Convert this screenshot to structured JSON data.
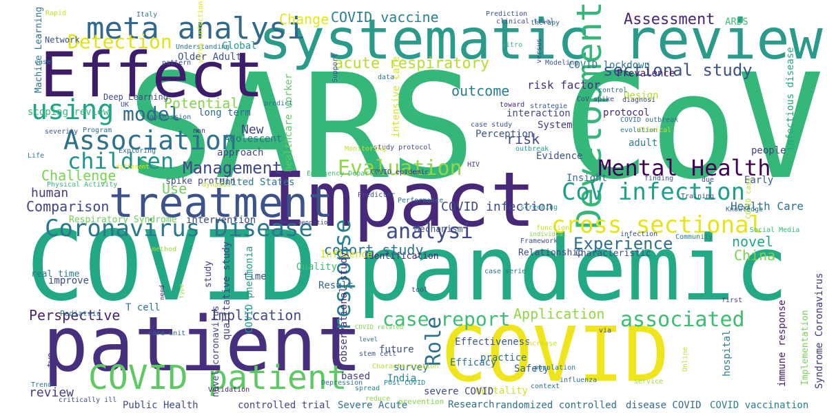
{
  "words": [
    {
      "text": "SARS CoV",
      "color": "#35b779"
    },
    {
      "text": "COVID",
      "color": "#22a884"
    },
    {
      "text": "pandemic",
      "color": "#23a983"
    },
    {
      "text": "COVID",
      "color": "#f0e51c"
    },
    {
      "text": "patient",
      "color": "#46307e"
    },
    {
      "text": "Impact",
      "color": "#482878"
    },
    {
      "text": "systematic review",
      "color": "#2a9a8a"
    },
    {
      "text": "Effect",
      "color": "#3d1d6a"
    },
    {
      "text": "treatment",
      "color": "#3b528b"
    },
    {
      "text": "COVID patient",
      "color": "#5ec962"
    },
    {
      "text": "meta analysi",
      "color": "#31688e"
    },
    {
      "text": "Coronavirus Disease",
      "color": "#2a788e"
    },
    {
      "text": "using",
      "color": "#20a386"
    },
    {
      "text": "Association",
      "color": "#2c728e"
    },
    {
      "text": "children",
      "color": "#21918c"
    },
    {
      "text": "Development",
      "color": "#35b779"
    },
    {
      "text": "Mental Health",
      "color": "#440154"
    },
    {
      "text": "cross sectional",
      "color": "#e5e419"
    },
    {
      "text": "CoV infection",
      "color": "#1f9e89"
    },
    {
      "text": "Evaluation",
      "color": "#8fd744"
    },
    {
      "text": "Detection",
      "color": "#dfe318"
    },
    {
      "text": "Management",
      "color": "#3e4989"
    },
    {
      "text": "model",
      "color": "#31688e"
    },
    {
      "text": "analysi",
      "color": "#3e4a89"
    },
    {
      "text": "Experience",
      "color": "#2d708e"
    },
    {
      "text": "response",
      "color": "#26828e"
    },
    {
      "text": "associated",
      "color": "#3fbc73"
    },
    {
      "text": "case report",
      "color": "#3fbc73"
    },
    {
      "text": "Role",
      "color": "#2c728e"
    },
    {
      "text": "sectional study",
      "color": "#3b528b"
    },
    {
      "text": "acute respiratory",
      "color": "#b5de2b"
    },
    {
      "text": "COVID vaccine",
      "color": "#26828e"
    },
    {
      "text": "Assessment",
      "color": "#482475"
    },
    {
      "text": "Potential",
      "color": "#86d549"
    },
    {
      "text": "Use",
      "color": "#6ece58"
    },
    {
      "text": "Challenge",
      "color": "#7ad151"
    },
    {
      "text": "Comparison",
      "color": "#414487"
    },
    {
      "text": "outcome",
      "color": "#287d8e"
    },
    {
      "text": "risk",
      "color": "#3e4989"
    },
    {
      "text": "cohort study",
      "color": "#2c728e"
    },
    {
      "text": "Application",
      "color": "#8fd744"
    },
    {
      "text": "Implication",
      "color": "#3f4788"
    },
    {
      "text": "Perspective",
      "color": "#481f70"
    },
    {
      "text": "review",
      "color": "#433e85"
    },
    {
      "text": "New",
      "color": "#404688"
    },
    {
      "text": "human",
      "color": "#443983"
    },
    {
      "text": "COVID infection",
      "color": "#3f4788"
    },
    {
      "text": "China",
      "color": "#7ad151"
    },
    {
      "text": "novel",
      "color": "#21a585"
    },
    {
      "text": "Change",
      "color": "#e7e419"
    },
    {
      "text": "Health Care",
      "color": "#2e6e8e"
    },
    {
      "text": "risk factor",
      "color": "#472d7b"
    },
    {
      "text": "Prevalence",
      "color": "#481a6c"
    },
    {
      "text": "Older Adult",
      "color": "#3b528b"
    },
    {
      "text": "healthcare worker",
      "color": "#5ec962"
    },
    {
      "text": "COVID lockdown",
      "color": "#2a788e"
    },
    {
      "text": "Global",
      "color": "#1f9a8a"
    },
    {
      "text": "intensive care",
      "color": "#d8e219"
    },
    {
      "text": "Deep Learning",
      "color": "#3e4989"
    },
    {
      "text": "Machine Learning",
      "color": "#2c728e"
    },
    {
      "text": "scoping review",
      "color": "#35b779"
    },
    {
      "text": "protocol",
      "color": "#482878"
    },
    {
      "text": "long term",
      "color": "#2e6e8e"
    },
    {
      "text": "Adolescent",
      "color": "#2d708e"
    },
    {
      "text": "interaction",
      "color": "#404688"
    },
    {
      "text": "Perception",
      "color": "#3b528b"
    },
    {
      "text": "System",
      "color": "#453781"
    },
    {
      "text": "Design",
      "color": "#b5de2b"
    },
    {
      "text": "adult",
      "color": "#27808e"
    },
    {
      "text": "infectious disease",
      "color": "#22a884"
    },
    {
      "text": "people",
      "color": "#424086"
    },
    {
      "text": "Early",
      "color": "#39568c"
    },
    {
      "text": "Insight",
      "color": "#2e6f8e"
    },
    {
      "text": "Evidence",
      "color": "#3b528b"
    },
    {
      "text": "United States",
      "color": "#2a788e"
    },
    {
      "text": "spike protein",
      "color": "#3e4989"
    },
    {
      "text": "approach",
      "color": "#414487"
    },
    {
      "text": "intervention",
      "color": "#3f4788"
    },
    {
      "text": "Respiratory Syndrome",
      "color": "#6ece58"
    },
    {
      "text": "Mechanism",
      "color": "#3d4e8a"
    },
    {
      "text": "Identification",
      "color": "#482878"
    },
    {
      "text": "Relationship",
      "color": "#3e4a89"
    },
    {
      "text": "Characteristic",
      "color": "#3b528b"
    },
    {
      "text": "Quality",
      "color": "#3fbc73"
    },
    {
      "text": "Influence",
      "color": "#d2e21b"
    },
    {
      "text": "time",
      "color": "#3b528b"
    },
    {
      "text": "Result",
      "color": "#31688e"
    },
    {
      "text": "qualitative study",
      "color": "#404588"
    },
    {
      "text": "T cell",
      "color": "#2c728e"
    },
    {
      "text": "improve",
      "color": "#3e4989"
    },
    {
      "text": "real time",
      "color": "#2a788e"
    },
    {
      "text": "COVID pneumonia",
      "color": "#1f9e89"
    },
    {
      "text": "study",
      "color": "#443a83"
    },
    {
      "text": "observational study",
      "color": "#472d7b"
    },
    {
      "text": "Effectiveness",
      "color": "#39568c"
    },
    {
      "text": "Efficacy",
      "color": "#2c728e"
    },
    {
      "text": "Safety",
      "color": "#355f8d"
    },
    {
      "text": "practice",
      "color": "#2e6e8e"
    },
    {
      "text": "future",
      "color": "#3b528b"
    },
    {
      "text": "survey",
      "color": "#2d708e"
    },
    {
      "text": "based",
      "color": "#433e85"
    },
    {
      "text": "India",
      "color": "#26828e"
    },
    {
      "text": "mortality",
      "color": "#d2e21b"
    },
    {
      "text": "hospital",
      "color": "#287d8e"
    },
    {
      "text": "immune response",
      "color": "#481668"
    },
    {
      "text": "Implementation",
      "color": "#7ad151"
    },
    {
      "text": "Syndrome Coronavirus",
      "color": "#46337e"
    },
    {
      "text": "severe COVID",
      "color": "#3f4788"
    },
    {
      "text": "Research",
      "color": "#2d708e"
    },
    {
      "text": "randomized controlled",
      "color": "#2e6f8e"
    },
    {
      "text": "disease COVID",
      "color": "#31688e"
    },
    {
      "text": "COVID vaccination",
      "color": "#287d8e"
    },
    {
      "text": "controlled trial",
      "color": "#3f4788"
    },
    {
      "text": "Severe Acute",
      "color": "#2c728e"
    },
    {
      "text": "Public Health",
      "color": "#3e4989"
    },
    {
      "text": "novel coronavirus",
      "color": "#414487"
    },
    {
      "text": "two",
      "color": "#46327e"
    },
    {
      "text": "Validation",
      "color": "#482071"
    },
    {
      "text": "critically ill",
      "color": "#3e4a89"
    },
    {
      "text": "Trend",
      "color": "#2c728e"
    },
    {
      "text": "care unit",
      "color": "#31688e"
    },
    {
      "text": "Pediatric",
      "color": "#2a788e"
    },
    {
      "text": "need",
      "color": "#481f70"
    },
    {
      "text": "type",
      "color": "#a0da39"
    },
    {
      "text": "stem cell",
      "color": "#3b528b"
    },
    {
      "text": "COVID related",
      "color": "#7ad151"
    },
    {
      "text": "level",
      "color": "#2d708e"
    },
    {
      "text": "Characterization",
      "color": "#b5de2b"
    },
    {
      "text": "spread",
      "color": "#25858e"
    },
    {
      "text": "Post COVID",
      "color": "#23898e"
    },
    {
      "text": "Depression",
      "color": "#2a788e"
    },
    {
      "text": "reduce",
      "color": "#8fd744"
    },
    {
      "text": "prevention",
      "color": "#86d549"
    },
    {
      "text": "influenza",
      "color": "#31688e"
    },
    {
      "text": "context",
      "color": "#2d708e"
    },
    {
      "text": "population",
      "color": "#2a788e"
    },
    {
      "text": "increase",
      "color": "#d2e21b"
    },
    {
      "text": "Online",
      "color": "#c8e020"
    },
    {
      "text": "service",
      "color": "#a0da39"
    },
    {
      "text": "via",
      "color": "#3e4989"
    },
    {
      "text": "first",
      "color": "#404588"
    },
    {
      "text": "tool",
      "color": "#3b528b"
    },
    {
      "text": "case serie",
      "color": "#2a788e"
    },
    {
      "text": "method",
      "color": "#a0da39"
    },
    {
      "text": "Recommendation",
      "color": "#414487"
    },
    {
      "text": "Framework",
      "color": "#3b528b"
    },
    {
      "text": "individual",
      "color": "#8fd744"
    },
    {
      "text": "function",
      "color": "#c8e020"
    },
    {
      "text": "infection",
      "color": "#3e4989"
    },
    {
      "text": "Community",
      "color": "#2a788e"
    },
    {
      "text": "Social Media",
      "color": "#35b779"
    },
    {
      "text": "COVID case",
      "color": "#b5de2b"
    },
    {
      "text": "Knowledge",
      "color": "#2e6e8e"
    },
    {
      "text": "Training",
      "color": "#3b528b"
    },
    {
      "text": "screening",
      "color": "#1f9e89"
    },
    {
      "text": "due",
      "color": "#3e4989"
    },
    {
      "text": "finding",
      "color": "#3b528b"
    },
    {
      "text": "Performance",
      "color": "#2d708e"
    },
    {
      "text": "Predictor",
      "color": "#3e4989"
    },
    {
      "text": "COVID epidemic",
      "color": "#472d7b"
    },
    {
      "text": "Emergency Department",
      "color": "#3fbc73"
    },
    {
      "text": "HIV",
      "color": "#404588"
    },
    {
      "text": "dynamic",
      "color": "#b5de2b"
    },
    {
      "text": "different",
      "color": "#dfe318"
    },
    {
      "text": "Physical Activity",
      "color": "#35b779"
    },
    {
      "text": "Life",
      "color": "#2a788e"
    },
    {
      "text": "Exploring",
      "color": "#2d708e"
    },
    {
      "text": "severity",
      "color": "#3b528b"
    },
    {
      "text": "non",
      "color": "#472d7b"
    },
    {
      "text": "Program",
      "color": "#2e6e8e"
    },
    {
      "text": "study protocol",
      "color": "#3e4989"
    },
    {
      "text": "Monitoring",
      "color": "#c8e020"
    },
    {
      "text": "outbreak",
      "color": "#1f9e89"
    },
    {
      "text": "evolution",
      "color": "#2a788e"
    },
    {
      "text": "Clinical",
      "color": "#c8e020"
    },
    {
      "text": "COVID outbreak",
      "color": "#2e6e8e"
    },
    {
      "text": "case study",
      "color": "#3b528b"
    },
    {
      "text": "diagnosi",
      "color": "#3f4788"
    },
    {
      "text": "toward",
      "color": "#482475"
    },
    {
      "text": "strategie",
      "color": "#3b528b"
    },
    {
      "text": "CoV spike",
      "color": "#3e4989"
    },
    {
      "text": "control",
      "color": "#2d708e"
    },
    {
      "text": "Support",
      "color": "#3b528b"
    },
    {
      "text": "predict",
      "color": "#2a788e"
    },
    {
      "text": "transmission",
      "color": "#31688e"
    },
    {
      "text": "UK",
      "color": "#3e4989"
    },
    {
      "text": "data",
      "color": "#2d708e"
    },
    {
      "text": "Modeling",
      "color": "#3b528b"
    },
    {
      "text": "versus",
      "color": "#3e4989"
    },
    {
      "text": "pattern",
      "color": "#3b528b"
    },
    {
      "text": "case",
      "color": "#2a788e"
    },
    {
      "text": "Understanding",
      "color": "#2a788e"
    },
    {
      "text": "virus infection",
      "color": "#dfe318"
    },
    {
      "text": "Network",
      "color": "#3b528b"
    },
    {
      "text": "Italy",
      "color": "#2a788e"
    },
    {
      "text": "Rapid",
      "color": "#c8e020"
    },
    {
      "text": "Prediction",
      "color": "#3b528b"
    },
    {
      "text": "clinical trial",
      "color": "#3e4989"
    },
    {
      "text": "vitro",
      "color": "#35b779"
    },
    {
      "text": "therapy",
      "color": "#2d708e"
    },
    {
      "text": "ARDS",
      "color": "#3fbc73"
    }
  ]
}
